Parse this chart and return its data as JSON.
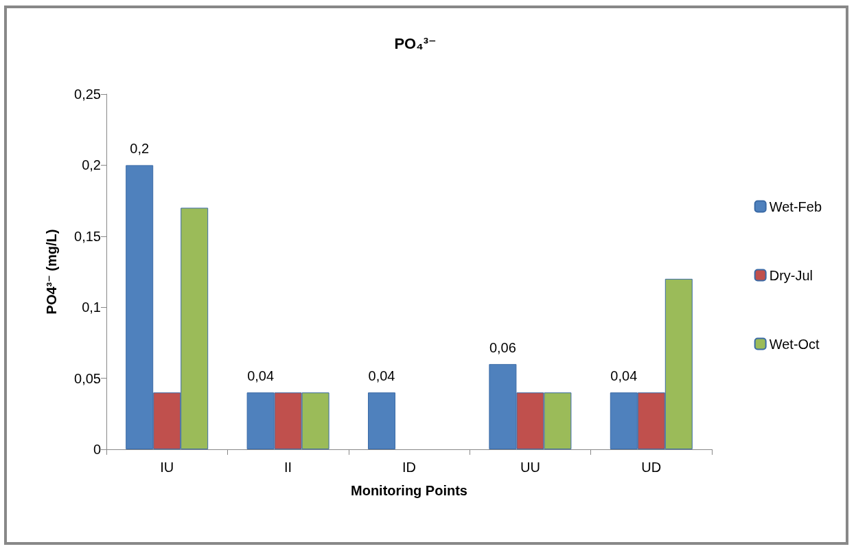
{
  "chart_data": {
    "type": "bar",
    "title": "PO₄³⁻",
    "xlabel": "Monitoring Points",
    "ylabel": "PO4³⁻ (mg/L)",
    "categories": [
      "IU",
      "II",
      "ID",
      "UU",
      "UD"
    ],
    "series": [
      {
        "name": "Wet-Feb",
        "color": "#4f81bd",
        "values": [
          0.2,
          0.04,
          0.04,
          0.06,
          0.04
        ],
        "value_labels": [
          "0,2",
          "0,04",
          "0,04",
          "0,06",
          "0,04"
        ]
      },
      {
        "name": "Dry-Jul",
        "color": "#c0504d",
        "values": [
          0.04,
          0.04,
          null,
          0.04,
          0.04
        ]
      },
      {
        "name": "Wet-Oct",
        "color": "#9bbb59",
        "values": [
          0.17,
          0.04,
          null,
          0.04,
          0.12
        ]
      }
    ],
    "ylim": [
      0,
      0.25
    ],
    "yticks": [
      0,
      {
        "value": 0.05,
        "label": "0,05"
      },
      {
        "value": 0.1,
        "label": "0,1"
      },
      {
        "value": 0.15,
        "label": "0,15"
      },
      {
        "value": 0.2,
        "label": "0,2"
      },
      {
        "value": 0.25,
        "label": "0,25"
      }
    ],
    "grid": false,
    "legend": "right"
  }
}
